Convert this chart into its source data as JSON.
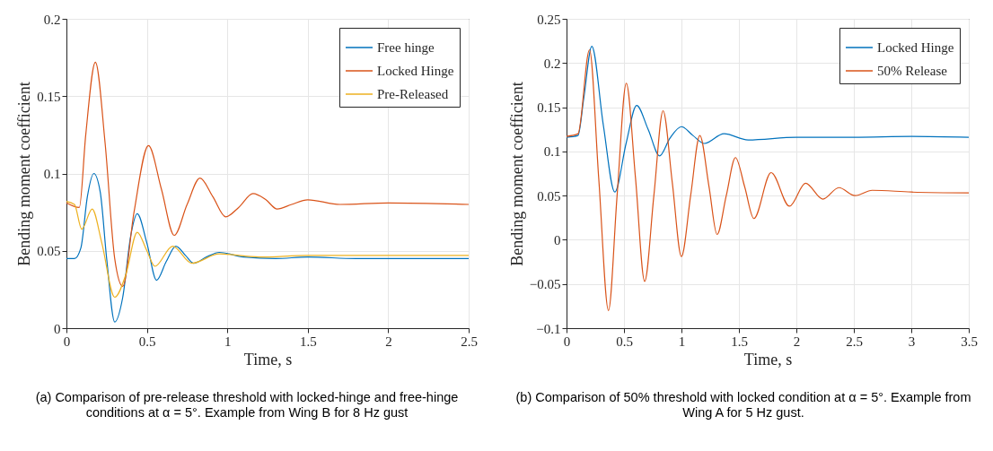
{
  "chart_data": [
    {
      "type": "line",
      "xlabel": "Time, s",
      "ylabel": "Bending moment coefficient",
      "annotations": [
        "(a) Comparison of pre-release threshold with locked-hinge and free-hinge conditions at α = 5°. Example from Wing B for 8 Hz gust"
      ],
      "xlim": [
        0,
        2.5
      ],
      "xticks": [
        0,
        0.5,
        1,
        1.5,
        2,
        2.5
      ],
      "ylim": [
        0,
        0.2
      ],
      "yticks": [
        0,
        0.05,
        0.1,
        0.15,
        0.2
      ],
      "grid": true,
      "legend": "top right",
      "series": [
        {
          "name": "Free hinge",
          "color": "#0072bd",
          "x": [
            0,
            0.05,
            0.09,
            0.13,
            0.17,
            0.21,
            0.25,
            0.3,
            0.35,
            0.4,
            0.44,
            0.5,
            0.56,
            0.62,
            0.68,
            0.74,
            0.79,
            0.87,
            0.95,
            1.1,
            1.3,
            1.5,
            1.8,
            2.0,
            2.2,
            2.5
          ],
          "values": [
            0.045,
            0.045,
            0.052,
            0.085,
            0.1,
            0.088,
            0.045,
            0.004,
            0.02,
            0.06,
            0.074,
            0.055,
            0.031,
            0.043,
            0.053,
            0.047,
            0.042,
            0.046,
            0.049,
            0.046,
            0.045,
            0.046,
            0.045,
            0.045,
            0.045,
            0.045
          ]
        },
        {
          "name": "Locked Hinge",
          "color": "#d95319",
          "x": [
            0,
            0.08,
            0.12,
            0.18,
            0.24,
            0.3,
            0.35,
            0.42,
            0.51,
            0.59,
            0.67,
            0.75,
            0.83,
            0.91,
            0.99,
            1.07,
            1.16,
            1.24,
            1.31,
            1.4,
            1.5,
            1.7,
            2.0,
            2.5
          ],
          "values": [
            0.081,
            0.078,
            0.125,
            0.172,
            0.12,
            0.045,
            0.027,
            0.075,
            0.118,
            0.09,
            0.06,
            0.08,
            0.097,
            0.085,
            0.072,
            0.078,
            0.087,
            0.083,
            0.077,
            0.08,
            0.083,
            0.08,
            0.081,
            0.08
          ]
        },
        {
          "name": "Pre-Released",
          "color": "#edb120",
          "x": [
            0,
            0.05,
            0.095,
            0.16,
            0.22,
            0.3,
            0.37,
            0.44,
            0.5,
            0.55,
            0.66,
            0.78,
            0.95,
            1.2,
            1.5,
            2.0,
            2.5
          ],
          "values": [
            0.082,
            0.08,
            0.064,
            0.077,
            0.055,
            0.02,
            0.035,
            0.062,
            0.05,
            0.04,
            0.053,
            0.042,
            0.048,
            0.046,
            0.047,
            0.047,
            0.047
          ]
        }
      ]
    },
    {
      "type": "line",
      "xlabel": "Time, s",
      "ylabel": "Bending moment coefficient",
      "annotations": [
        "(b) Comparison of 50% threshold with locked condition at α = 5°. Example from Wing A for 5 Hz gust."
      ],
      "xlim": [
        0,
        3.5
      ],
      "xticks": [
        0,
        0.5,
        1,
        1.5,
        2,
        2.5,
        3,
        3.5
      ],
      "ylim": [
        -0.1,
        0.25
      ],
      "yticks": [
        -0.1,
        -0.05,
        0,
        0.05,
        0.1,
        0.15,
        0.2,
        0.25
      ],
      "grid": true,
      "legend": "top right",
      "series": [
        {
          "name": "Locked Hinge",
          "color": "#0072bd",
          "x": [
            0,
            0.1,
            0.15,
            0.22,
            0.32,
            0.42,
            0.52,
            0.61,
            0.71,
            0.81,
            0.9,
            1.0,
            1.1,
            1.2,
            1.37,
            1.58,
            2.0,
            2.5,
            3.0,
            3.5
          ],
          "values": [
            0.116,
            0.118,
            0.16,
            0.219,
            0.13,
            0.054,
            0.11,
            0.152,
            0.125,
            0.095,
            0.115,
            0.128,
            0.118,
            0.109,
            0.12,
            0.113,
            0.116,
            0.116,
            0.117,
            0.116
          ]
        },
        {
          "name": "50% Release",
          "color": "#d95319",
          "x": [
            0,
            0.1,
            0.2,
            0.28,
            0.365,
            0.44,
            0.52,
            0.6,
            0.68,
            0.76,
            0.84,
            0.92,
            1.0,
            1.08,
            1.16,
            1.24,
            1.31,
            1.39,
            1.47,
            1.55,
            1.63,
            1.78,
            1.94,
            2.08,
            2.23,
            2.37,
            2.51,
            2.66,
            3.0,
            3.5
          ],
          "values": [
            0.117,
            0.12,
            0.215,
            0.07,
            -0.08,
            0.05,
            0.177,
            0.07,
            -0.047,
            0.05,
            0.146,
            0.065,
            -0.019,
            0.05,
            0.118,
            0.06,
            0.006,
            0.05,
            0.093,
            0.06,
            0.024,
            0.076,
            0.038,
            0.064,
            0.046,
            0.059,
            0.05,
            0.056,
            0.054,
            0.053
          ]
        }
      ]
    }
  ]
}
